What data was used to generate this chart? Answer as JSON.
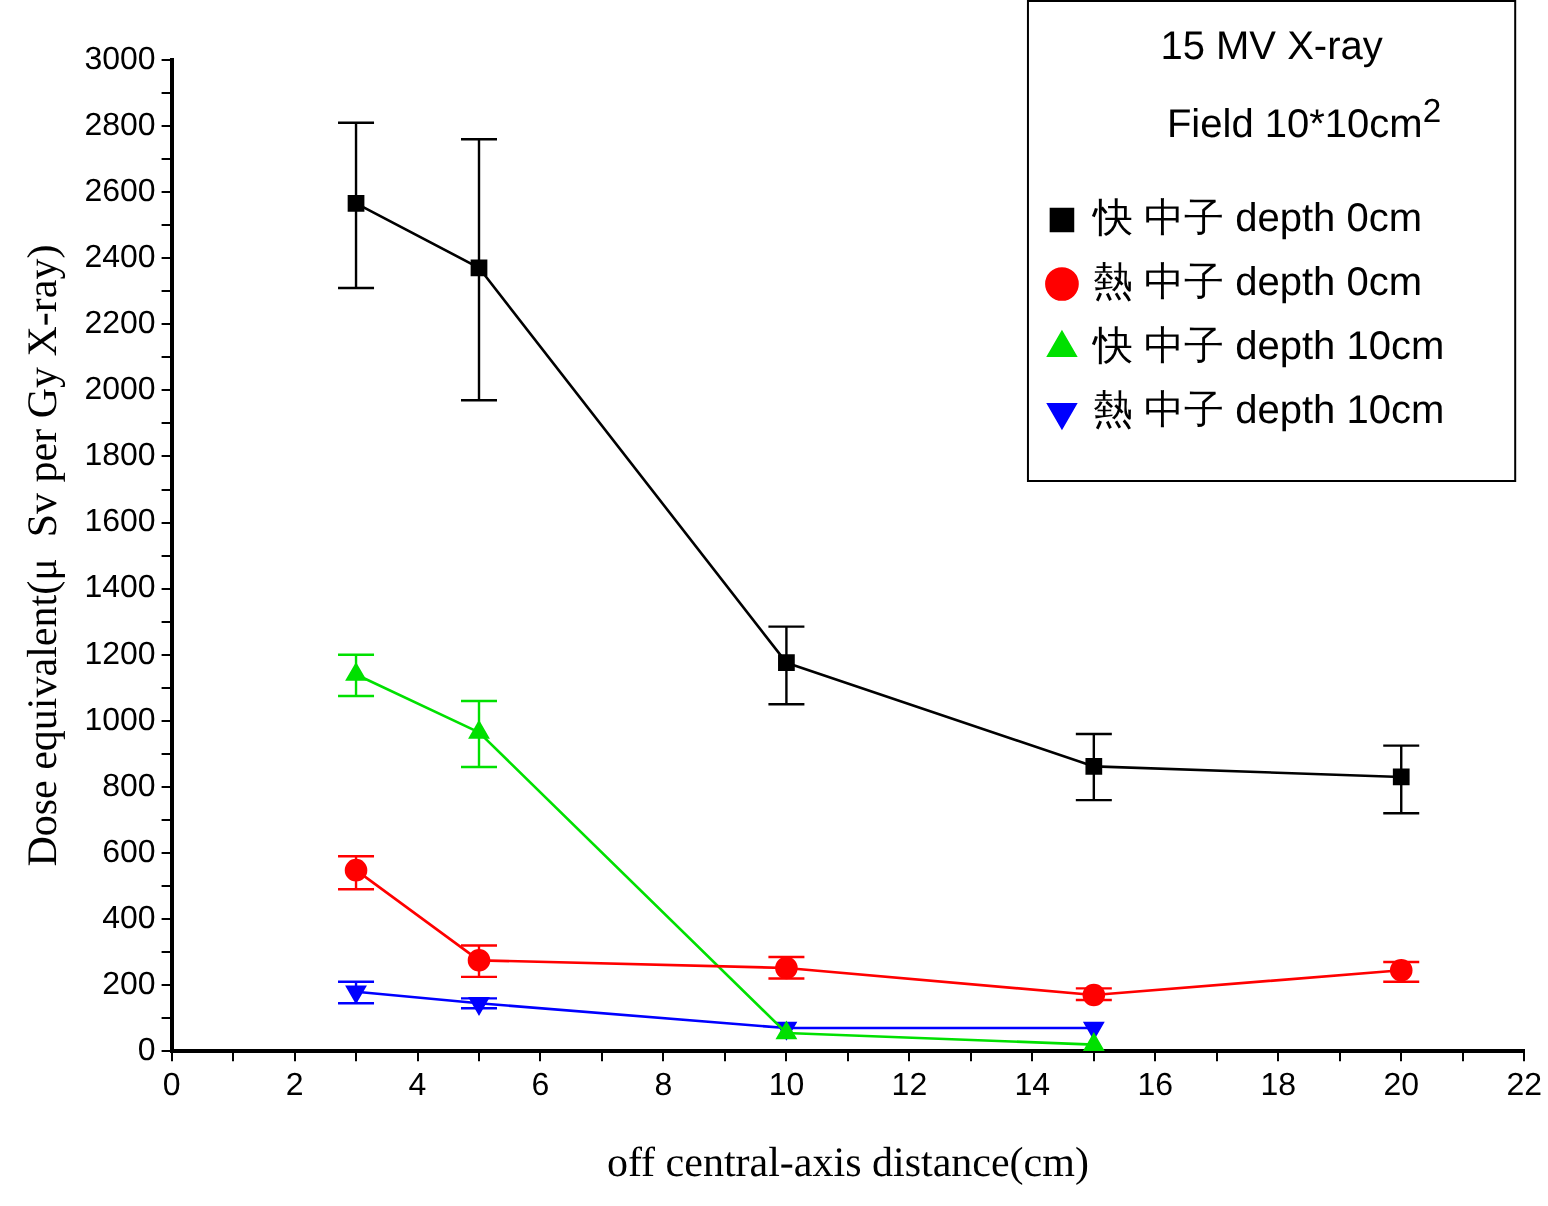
{
  "chart_data": {
    "type": "line",
    "xlabel": "off central-axis distance(cm)",
    "ylabel": "Dose equivalent(μ  Sv per Gy X-ray)",
    "legend_title": "15 MV X-ray",
    "annotations": [
      "Field 10*10cm$^{2}$"
    ],
    "legend": "top right",
    "grid": false,
    "x": [
      3,
      5,
      10,
      15,
      20
    ],
    "xlim": [
      0,
      22
    ],
    "ylim": [
      0,
      3000
    ],
    "xticks": [
      0,
      {
        "value": 1,
        "label": null
      },
      2,
      {
        "value": 3,
        "label": null
      },
      4,
      {
        "value": 5,
        "label": null
      },
      6,
      {
        "value": 7,
        "label": null
      },
      8,
      {
        "value": 9,
        "label": null
      },
      10,
      {
        "value": 11,
        "label": null
      },
      12,
      {
        "value": 13,
        "label": null
      },
      14,
      {
        "value": 15,
        "label": null
      },
      16,
      {
        "value": 17,
        "label": null
      },
      18,
      {
        "value": 19,
        "label": null
      },
      20,
      {
        "value": 21,
        "label": null
      },
      22
    ],
    "yticks": [
      0,
      {
        "value": 100,
        "label": null
      },
      200,
      {
        "value": 300,
        "label": null
      },
      400,
      {
        "value": 500,
        "label": null
      },
      600,
      {
        "value": 700,
        "label": null
      },
      800,
      {
        "value": 900,
        "label": null
      },
      1000,
      {
        "value": 1100,
        "label": null
      },
      1200,
      {
        "value": 1300,
        "label": null
      },
      1400,
      {
        "value": 1500,
        "label": null
      },
      1600,
      {
        "value": 1700,
        "label": null
      },
      1800,
      {
        "value": 1900,
        "label": null
      },
      2000,
      {
        "value": 2100,
        "label": null
      },
      2200,
      {
        "value": 2300,
        "label": null
      },
      2400,
      {
        "value": 2500,
        "label": null
      },
      2600,
      {
        "value": 2700,
        "label": null
      },
      2800,
      {
        "value": 2900,
        "label": null
      },
      3000
    ],
    "series": [
      {
        "name": "快 中子 depth 0cm",
        "color": "#000000",
        "marker": "square",
        "values": [
          2566,
          2371,
          1176,
          862,
          830
        ],
        "errors": [
          [
            2310,
            2810
          ],
          [
            1970,
            2760
          ],
          [
            1050,
            1285
          ],
          [
            760,
            960
          ],
          [
            720,
            925
          ]
        ]
      },
      {
        "name": "熱 中子 depth 0cm",
        "color": "#ff0000",
        "marker": "circle",
        "values": [
          548,
          275,
          252,
          170,
          245
        ],
        "errors": [
          [
            490,
            590
          ],
          [
            225,
            320
          ],
          [
            220,
            285
          ],
          [
            155,
            190
          ],
          [
            210,
            270
          ]
        ]
      },
      {
        "name": "快 中子 depth 10cm",
        "color": "#00e000",
        "marker": "triangle",
        "x": [
          3,
          5,
          10,
          15
        ],
        "values": [
          1140,
          965,
          55,
          20
        ],
        "errors": [
          [
            1075,
            1200
          ],
          [
            860,
            1060
          ],
          null,
          null
        ]
      },
      {
        "name": "熱 中子 depth 10cm",
        "color": "#0000ff",
        "marker": "triangle-down",
        "x": [
          3,
          5,
          10,
          15
        ],
        "values": [
          180,
          145,
          70,
          70
        ],
        "errors": [
          [
            145,
            210
          ],
          [
            130,
            160
          ],
          null,
          null
        ]
      }
    ]
  }
}
